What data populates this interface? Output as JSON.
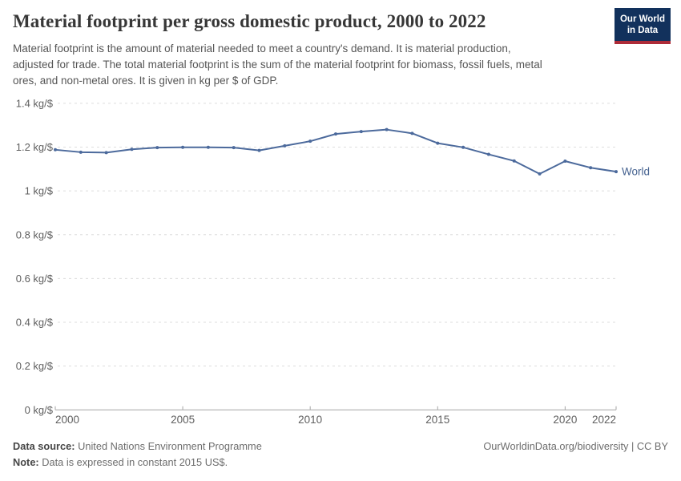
{
  "header": {
    "title": "Material footprint per gross domestic product, 2000 to 2022",
    "subtitle_lines": [
      "Material footprint is the amount of material needed to meet a country's demand. It is material production,",
      "adjusted for trade. The total material footprint is the sum of the material footprint for biomass, fossil fuels, metal",
      "ores, and non-metal ores. It is given in kg per $ of GDP."
    ],
    "logo": {
      "line1": "Our World",
      "line2": "in Data"
    }
  },
  "chart_data": {
    "type": "line",
    "title": "Material footprint per gross domestic product, 2000 to 2022",
    "xlabel": "",
    "ylabel": "kg per $ of GDP",
    "x": [
      2000,
      2001,
      2002,
      2003,
      2004,
      2005,
      2006,
      2007,
      2008,
      2009,
      2010,
      2011,
      2012,
      2013,
      2014,
      2015,
      2016,
      2017,
      2018,
      2019,
      2020,
      2021,
      2022
    ],
    "series": [
      {
        "name": "World",
        "values": [
          1.188,
          1.177,
          1.175,
          1.19,
          1.198,
          1.199,
          1.199,
          1.198,
          1.185,
          1.206,
          1.227,
          1.26,
          1.271,
          1.28,
          1.263,
          1.218,
          1.199,
          1.167,
          1.137,
          1.078,
          1.136,
          1.106,
          1.088
        ]
      }
    ],
    "x_ticks": [
      2000,
      2005,
      2010,
      2015,
      2020,
      2022
    ],
    "y_ticks": [
      0,
      0.2,
      0.4,
      0.6,
      0.8,
      1,
      1.2,
      1.4
    ],
    "y_tick_suffix": " kg/$",
    "xlim": [
      2000,
      2022
    ],
    "ylim": [
      0,
      1.4
    ],
    "grid": true,
    "legend_position": "end-of-line",
    "end_label": "World"
  },
  "colors": {
    "line": "#4C6A9C",
    "series_label": "#44618f",
    "grid": "#dddddd",
    "axis": "#a5a5a5",
    "tick_text": "#5f5f5f",
    "logo_bg": "#12315c",
    "logo_stripe": "#ad2b38"
  },
  "footer": {
    "source_label": "Data source:",
    "source_text": "United Nations Environment Programme",
    "note_label": "Note:",
    "note_text": "Data is expressed in constant 2015 US$.",
    "link": "OurWorldinData.org/biodiversity | CC BY"
  }
}
